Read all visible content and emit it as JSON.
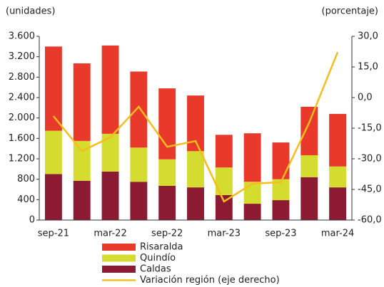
{
  "chart_data": {
    "type": "bar",
    "y_axis_label": "(unidades)",
    "y2_axis_label": "(porcentaje)",
    "categories": [
      "sep-21",
      null,
      "mar-22",
      null,
      "sep-22",
      null,
      "mar-23",
      null,
      "sep-23",
      null,
      "mar-24"
    ],
    "stacked": true,
    "series": [
      {
        "name": "Risaralda",
        "color": "#e8392a",
        "values": [
          1650,
          1520,
          1730,
          1490,
          1390,
          1090,
          640,
          950,
          720,
          950,
          1030
        ]
      },
      {
        "name": "Quindío",
        "color": "#d4dc30",
        "values": [
          850,
          780,
          740,
          670,
          520,
          710,
          540,
          430,
          410,
          430,
          410
        ]
      },
      {
        "name": "Caldas",
        "color": "#8c1a33",
        "values": [
          900,
          770,
          950,
          750,
          670,
          640,
          490,
          320,
          390,
          840,
          640
        ]
      },
      {
        "name": "Variación región (eje derecho)",
        "color": "#f7bd1c",
        "type": "line",
        "axis": "y2",
        "values": [
          -9.1,
          -26.2,
          -19.5,
          -4.5,
          -24.1,
          -21.3,
          -50.9,
          -42.2,
          -41.5,
          -12.2,
          22.3
        ]
      }
    ],
    "ylim": [
      0,
      3600
    ],
    "yticks": [
      0,
      {
        "value": 400,
        "label": "400"
      },
      {
        "value": 800,
        "label": "800"
      },
      {
        "value": 1200,
        "label": "1.200"
      },
      {
        "value": 1600,
        "label": "1.600"
      },
      {
        "value": 2000,
        "label": "2.000"
      },
      {
        "value": 2400,
        "label": "2.400"
      },
      {
        "value": 2800,
        "label": "2.800"
      },
      {
        "value": 3200,
        "label": "3.200"
      },
      {
        "value": 3600,
        "label": "3.600"
      }
    ],
    "y2lim": [
      -60,
      30
    ],
    "y2ticks": [
      {
        "value": -60,
        "label": "-60,0"
      },
      {
        "value": -45,
        "label": "-45,0"
      },
      {
        "value": -30,
        "label": "-30,0"
      },
      {
        "value": -15,
        "label": "-15,0"
      },
      {
        "value": 0,
        "label": "0,0"
      },
      {
        "value": 15,
        "label": "15,0"
      },
      {
        "value": 30,
        "label": "30,0"
      }
    ],
    "grid": false
  }
}
